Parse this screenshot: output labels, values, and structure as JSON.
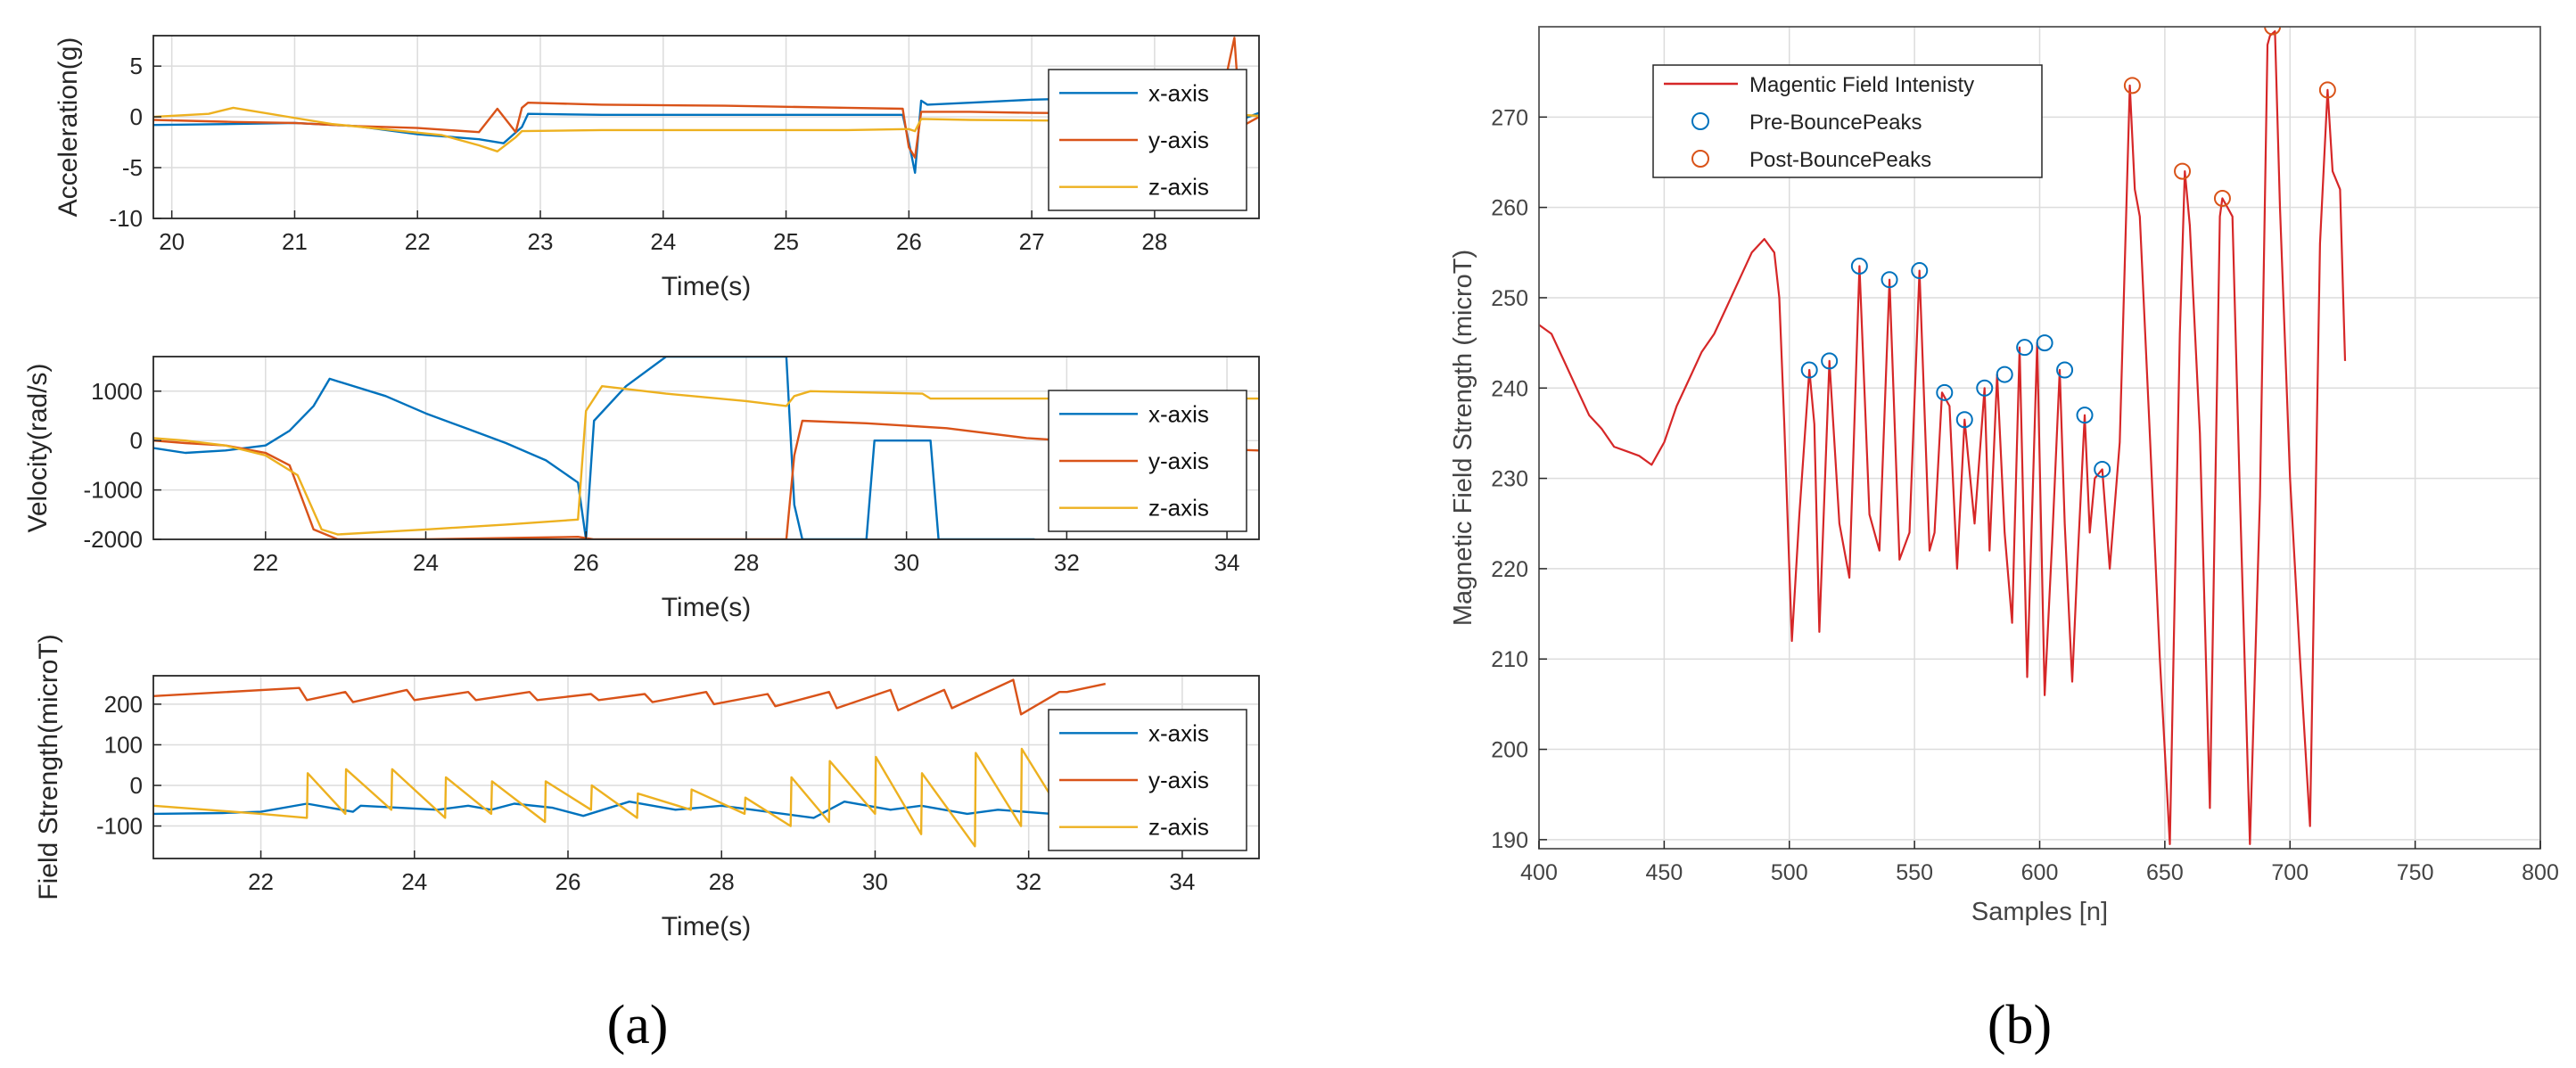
{
  "chart_data": [
    {
      "type": "line",
      "ylabel": "Acceleration(g)",
      "xlabel": "Time(s)",
      "xlim": [
        19.85,
        28.85
      ],
      "ylim": [
        -10,
        8
      ],
      "xticks": [
        20,
        21,
        22,
        23,
        24,
        25,
        26,
        27,
        28
      ],
      "yticks": [
        -10,
        -5,
        0,
        5
      ],
      "legend_position": "right",
      "grid": true,
      "series": [
        {
          "name": "x-axis",
          "color": "#0072BD",
          "x": [
            19.85,
            20.5,
            21.0,
            21.5,
            22.0,
            22.5,
            22.7,
            22.85,
            22.9,
            23.5,
            24.0,
            25.0,
            25.95,
            26.0,
            26.05,
            26.1,
            26.15,
            26.5,
            27.0,
            28.0,
            28.65,
            28.7,
            28.85
          ],
          "y": [
            -0.8,
            -0.7,
            -0.6,
            -0.9,
            -1.7,
            -2.2,
            -2.6,
            -1.0,
            0.3,
            0.2,
            0.2,
            0.2,
            0.2,
            -2.5,
            -5.5,
            1.6,
            1.2,
            1.4,
            1.7,
            2.0,
            2.1,
            -0.3,
            0.4
          ]
        },
        {
          "name": "y-axis",
          "color": "#D95319",
          "x": [
            19.85,
            20.5,
            21.0,
            21.5,
            22.0,
            22.5,
            22.65,
            22.8,
            22.85,
            22.9,
            23.5,
            24.5,
            25.5,
            25.95,
            26.0,
            26.05,
            26.1,
            26.5,
            27.0,
            28.0,
            28.55,
            28.6,
            28.65,
            28.7,
            28.85
          ],
          "y": [
            -0.3,
            -0.5,
            -0.6,
            -0.9,
            -1.1,
            -1.5,
            0.8,
            -1.5,
            0.9,
            1.4,
            1.2,
            1.1,
            0.9,
            0.8,
            -3.0,
            -4.0,
            0.5,
            0.5,
            0.4,
            0.3,
            2.0,
            5.0,
            7.8,
            -1.0,
            0.0
          ]
        },
        {
          "name": "z-axis",
          "color": "#EDB120",
          "x": [
            19.85,
            20.3,
            20.5,
            20.9,
            21.3,
            21.8,
            22.2,
            22.5,
            22.65,
            22.8,
            22.85,
            23.5,
            24.5,
            25.5,
            26.0,
            26.05,
            26.1,
            26.5,
            27.5,
            28.5,
            28.65,
            28.7,
            28.85
          ],
          "y": [
            0.0,
            0.3,
            0.9,
            0.1,
            -0.7,
            -1.3,
            -1.8,
            -2.8,
            -3.4,
            -2.0,
            -1.4,
            -1.3,
            -1.3,
            -1.3,
            -1.2,
            -1.4,
            -0.2,
            -0.3,
            -0.4,
            -0.5,
            -0.6,
            0.2,
            0.1
          ]
        }
      ]
    },
    {
      "type": "line",
      "ylabel": "Velocity(rad/s)",
      "xlabel": "Time(s)",
      "xlim": [
        20.6,
        34.4
      ],
      "ylim": [
        -2000,
        1700
      ],
      "xticks": [
        22,
        24,
        26,
        28,
        30,
        32,
        34
      ],
      "yticks": [
        -2000,
        -1000,
        0,
        1000
      ],
      "legend_position": "right",
      "grid": true,
      "series": [
        {
          "name": "x-axis",
          "color": "#0072BD",
          "x": [
            20.6,
            21.0,
            21.5,
            22.0,
            22.3,
            22.6,
            22.8,
            23.5,
            24.0,
            24.5,
            25.0,
            25.5,
            25.9,
            26.0,
            26.1,
            26.5,
            27.0,
            28.5,
            28.6,
            28.7,
            29.5,
            29.6,
            30.3,
            30.4,
            31.5,
            31.6
          ],
          "y": [
            -150,
            -250,
            -200,
            -100,
            200,
            700,
            1250,
            900,
            550,
            250,
            -50,
            -400,
            -850,
            -2000,
            400,
            1100,
            1700,
            1700,
            -1300,
            -2000,
            -2000,
            0,
            0,
            -2000,
            -2000,
            -2000
          ]
        },
        {
          "name": "y-axis",
          "color": "#D95319",
          "x": [
            20.6,
            21.0,
            21.5,
            22.0,
            22.3,
            22.6,
            22.9,
            24.0,
            25.9,
            26.1,
            27.0,
            28.5,
            28.6,
            28.7,
            29.5,
            30.5,
            31.5,
            32.5,
            33.5,
            34.4
          ],
          "y": [
            0,
            -50,
            -100,
            -250,
            -500,
            -1800,
            -2000,
            -2000,
            -1950,
            -2000,
            -2000,
            -2000,
            -300,
            400,
            350,
            250,
            50,
            -50,
            -150,
            -200
          ]
        },
        {
          "name": "z-axis",
          "color": "#EDB120",
          "x": [
            20.6,
            21.0,
            21.5,
            22.0,
            22.4,
            22.7,
            22.9,
            24.0,
            25.0,
            25.9,
            26.0,
            26.2,
            27.0,
            28.0,
            28.5,
            28.6,
            28.8,
            30.2,
            30.3,
            31.5,
            33.0,
            34.4
          ],
          "y": [
            50,
            0,
            -100,
            -300,
            -700,
            -1800,
            -1900,
            -1800,
            -1700,
            -1600,
            600,
            1100,
            950,
            800,
            700,
            900,
            1000,
            950,
            850,
            850,
            850,
            850
          ]
        }
      ]
    },
    {
      "type": "line",
      "ylabel": "Field Strength(microT)",
      "xlabel": "Time(s)",
      "xlim": [
        20.6,
        35.0
      ],
      "ylim": [
        -180,
        270
      ],
      "xticks": [
        22,
        24,
        26,
        28,
        30,
        32,
        34
      ],
      "yticks": [
        -100,
        0,
        100,
        200
      ],
      "legend_position": "right",
      "grid": true,
      "series": [
        {
          "name": "x-axis",
          "color": "#0072BD",
          "x": [
            20.6,
            21.5,
            22.0,
            22.6,
            23.2,
            23.3,
            23.8,
            24.3,
            24.7,
            25.0,
            25.3,
            25.8,
            26.2,
            26.8,
            27.4,
            28.0,
            28.4,
            29.2,
            29.6,
            30.2,
            30.6,
            31.2,
            31.6,
            32.3,
            33.0
          ],
          "y": [
            -70,
            -68,
            -65,
            -45,
            -65,
            -50,
            -55,
            -60,
            -50,
            -60,
            -45,
            -55,
            -75,
            -40,
            -60,
            -50,
            -60,
            -80,
            -40,
            -60,
            -50,
            -70,
            -60,
            -70,
            -65
          ]
        },
        {
          "name": "y-axis",
          "color": "#D95319",
          "x": [
            20.6,
            22.5,
            22.6,
            23.1,
            23.2,
            23.9,
            24.0,
            24.7,
            24.8,
            25.5,
            25.6,
            26.3,
            26.4,
            27.0,
            27.1,
            27.8,
            27.9,
            28.6,
            28.7,
            29.4,
            29.5,
            30.2,
            30.3,
            30.9,
            31.0,
            31.8,
            31.9,
            32.4,
            32.5,
            33.0
          ],
          "y": [
            220,
            240,
            210,
            230,
            205,
            235,
            210,
            230,
            210,
            230,
            210,
            225,
            210,
            225,
            205,
            230,
            200,
            225,
            195,
            230,
            190,
            235,
            185,
            235,
            190,
            260,
            175,
            230,
            230,
            250
          ]
        },
        {
          "name": "z-axis",
          "color": "#EDB120",
          "x": [
            20.6,
            22.0,
            22.6,
            22.61,
            23.1,
            23.11,
            23.7,
            23.71,
            24.4,
            24.41,
            25.0,
            25.01,
            25.7,
            25.71,
            26.3,
            26.31,
            26.9,
            26.91,
            27.6,
            27.61,
            28.3,
            28.31,
            28.9,
            28.91,
            29.4,
            29.41,
            30.0,
            30.01,
            30.6,
            30.61,
            31.3,
            31.31,
            31.9,
            31.91,
            32.5
          ],
          "y": [
            -50,
            -70,
            -80,
            30,
            -70,
            40,
            -60,
            40,
            -80,
            20,
            -70,
            10,
            -90,
            10,
            -60,
            0,
            -80,
            -20,
            -60,
            -10,
            -70,
            -30,
            -100,
            20,
            -90,
            60,
            -70,
            70,
            -120,
            30,
            -150,
            80,
            -100,
            90,
            -90
          ]
        }
      ]
    },
    {
      "type": "line",
      "ylabel": "Magnetic Field Strength (microT)",
      "xlabel": "Samples [n]",
      "xlim": [
        400,
        800
      ],
      "ylim": [
        189,
        280
      ],
      "xticks": [
        400,
        450,
        500,
        550,
        600,
        650,
        700,
        750,
        800
      ],
      "yticks": [
        190,
        200,
        210,
        220,
        230,
        240,
        250,
        260,
        270
      ],
      "legend_position": "top-left",
      "grid": true,
      "series": [
        {
          "name": "Magentic Field Intenisty",
          "color": "#D62728",
          "style": "line",
          "x": [
            400,
            405,
            410,
            415,
            420,
            425,
            430,
            435,
            440,
            445,
            450,
            455,
            460,
            465,
            470,
            475,
            480,
            485,
            490,
            494,
            496,
            498,
            501,
            504,
            508,
            510,
            512,
            516,
            520,
            524,
            528,
            532,
            536,
            540,
            544,
            548,
            552,
            556,
            558,
            561,
            564,
            567,
            570,
            574,
            578,
            580,
            583,
            586,
            589,
            592,
            595,
            599,
            602,
            605,
            608,
            610,
            613,
            615,
            618,
            620,
            622,
            625,
            628,
            632,
            636,
            638,
            640,
            644,
            648,
            652,
            656,
            658,
            660,
            664,
            668,
            672,
            673,
            675,
            677,
            680,
            684,
            688,
            691,
            692,
            694,
            696,
            700,
            704,
            708,
            712,
            715,
            717,
            720,
            722
          ],
          "y": [
            247,
            246,
            243,
            240,
            237,
            235.5,
            233.5,
            233,
            232.5,
            231.5,
            234,
            238,
            241,
            244,
            246,
            249,
            252,
            255,
            256.5,
            255,
            250,
            236,
            212,
            226,
            242,
            236,
            213,
            243,
            225,
            219,
            253.5,
            226,
            222,
            252,
            221,
            224,
            253,
            222,
            224,
            239.5,
            238,
            220,
            236.5,
            225,
            240,
            222,
            241.5,
            224,
            214,
            244.5,
            208,
            245,
            206,
            223,
            242,
            225,
            207.5,
            220,
            237,
            224,
            230,
            231,
            220,
            234,
            273.5,
            262,
            259,
            235,
            210,
            189.5,
            246,
            264,
            258,
            235,
            193.5,
            259,
            261,
            260,
            259,
            228,
            189.5,
            228,
            278,
            279,
            279.5,
            260,
            230,
            210,
            191.5,
            256,
            273,
            264,
            262,
            243
          ]
        },
        {
          "name": "Pre-BouncePeaks",
          "color": "#0072BD",
          "style": "marker",
          "x": [
            508,
            516,
            528,
            540,
            552,
            562,
            570,
            578,
            586,
            594,
            602,
            610,
            618,
            625
          ],
          "y": [
            242,
            243,
            253.5,
            252,
            253,
            239.5,
            236.5,
            240,
            241.5,
            244.5,
            245,
            242,
            237,
            231
          ]
        },
        {
          "name": "Post-BouncePeaks",
          "color": "#D95319",
          "style": "marker",
          "x": [
            637,
            657,
            673,
            693,
            715
          ],
          "y": [
            273.5,
            264,
            261,
            280,
            273
          ]
        }
      ]
    }
  ],
  "panel_labels": [
    "(a)",
    "(b)"
  ]
}
